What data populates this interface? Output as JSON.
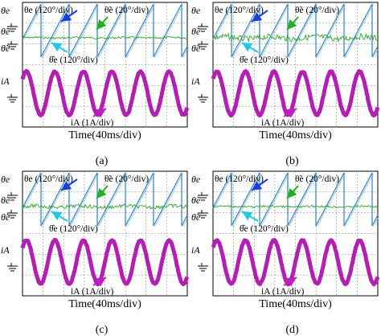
{
  "figure": {
    "panels": [
      {
        "id": "a",
        "caption": "(a)",
        "x_axis_label": "Time(40ms/div)",
        "left_labels": [
          "θe",
          "θ̂e",
          "θ̃e",
          "iA"
        ],
        "annotations": [
          "θe (120°/div)",
          "θ̃e (20°/div)",
          "θ̂e (120°/div)",
          "iA (1A/div)"
        ],
        "estimate_noise": "low"
      },
      {
        "id": "b",
        "caption": "(b)",
        "x_axis_label": "Time(40ms/div)",
        "left_labels": [
          "θe",
          "θ̂e",
          "θ̃e",
          "iA"
        ],
        "annotations": [
          "θe (120°/div)",
          "θ̃e (20°/div)",
          "θ̂e (120°/div)",
          "iA (1A/div)"
        ],
        "estimate_noise": "high"
      },
      {
        "id": "c",
        "caption": "(c)",
        "x_axis_label": "Time(40ms/div)",
        "left_labels": [
          "θe",
          "θ̂e",
          "θ̃e",
          "iA"
        ],
        "annotations": [
          "θe (120°/div)",
          "θ̃e (20°/div)",
          "θ̂e (120°/div)",
          "iA (1A/div)"
        ],
        "estimate_noise": "medium"
      },
      {
        "id": "d",
        "caption": "(d)",
        "x_axis_label": "Time(40ms/div)",
        "left_labels": [
          "θe",
          "θ̂e",
          "θ̃e",
          "iA"
        ],
        "annotations": [
          "θe (120°/div)",
          "θ̃e (20°/div)",
          "θ̂e (120°/div)",
          "iA (1A/div)"
        ],
        "estimate_noise": "low"
      }
    ],
    "colors": {
      "sawtooth": "#3c88c8",
      "error_trace": "#2fa62f",
      "current": "#b31fb3",
      "arrow_theta": "#1d3fd6",
      "arrow_error": "#22b022",
      "arrow_estimate": "#22c8e8",
      "arrow_current": "#c020c0",
      "grid": "#7f7f7f"
    }
  }
}
